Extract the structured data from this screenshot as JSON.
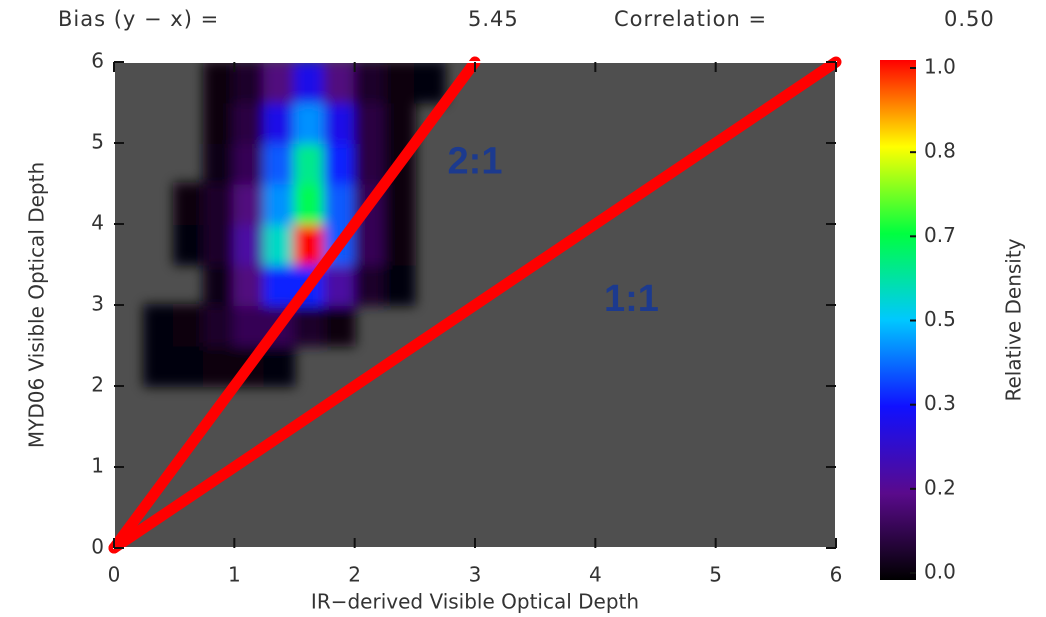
{
  "chart_data": {
    "type": "heatmap",
    "header": {
      "bias_label": "Bias (y − x) =",
      "bias_value": "5.45",
      "correlation_label": "Correlation =",
      "correlation_value": "0.50"
    },
    "xlabel": "IR−derived Visible Optical Depth",
    "ylabel": "MYD06 Visible Optical Depth",
    "colorbar_label": "Relative Density",
    "xlim": [
      0,
      6
    ],
    "ylim": [
      0,
      6
    ],
    "xticks": [
      0,
      1,
      2,
      3,
      4,
      5,
      6
    ],
    "yticks": [
      0,
      1,
      2,
      3,
      4,
      5,
      6
    ],
    "clim": [
      0,
      1
    ],
    "cticks": [
      {
        "value": 0,
        "label": "0.0"
      },
      {
        "value": 0.1667,
        "label": "0.2"
      },
      {
        "value": 0.3333,
        "label": "0.3"
      },
      0.5,
      {
        "value": 0.6667,
        "label": "0.7"
      },
      {
        "value": 0.8333,
        "label": "0.8"
      },
      {
        "value": 1,
        "label": "1.0"
      }
    ],
    "colorscale": [
      "#000000",
      "#5a0a8c",
      "#1010ff",
      "#00c8ff",
      "#00ff40",
      "#ffff00",
      "#ff0000"
    ],
    "background": "#4f4f4f",
    "xbins": [
      0.25,
      0.5,
      0.75,
      1.0,
      1.25,
      1.5,
      1.75,
      2.0,
      2.25,
      2.5,
      2.75
    ],
    "ybins": [
      2,
      2.5,
      3,
      3.5,
      4,
      4.5,
      5,
      5.5,
      6
    ],
    "z": [
      [
        0.01,
        0.01,
        0.02,
        0.02,
        0.01,
        null,
        null,
        null,
        null,
        null
      ],
      [
        0.01,
        0.02,
        0.05,
        0.1,
        0.1,
        0.05,
        0.02,
        null,
        null,
        null
      ],
      [
        null,
        null,
        0.03,
        0.15,
        0.35,
        0.35,
        0.2,
        0.05,
        0.01,
        null
      ],
      [
        null,
        0.01,
        0.05,
        0.2,
        0.55,
        1.0,
        0.4,
        0.1,
        0.02,
        null
      ],
      [
        null,
        0.02,
        0.05,
        0.15,
        0.45,
        0.65,
        0.4,
        0.1,
        0.02,
        null
      ],
      [
        null,
        null,
        0.03,
        0.1,
        0.4,
        0.6,
        0.35,
        0.08,
        0.02,
        null
      ],
      [
        null,
        null,
        0.02,
        0.08,
        0.3,
        0.45,
        0.3,
        0.08,
        0.02,
        null
      ],
      [
        null,
        null,
        0.02,
        0.05,
        0.15,
        0.3,
        0.15,
        0.05,
        0.02,
        0.01
      ]
    ],
    "lines": [
      {
        "label": "2:1",
        "color": "#ff0000",
        "x": [
          0,
          3
        ],
        "y": [
          0,
          6
        ]
      },
      {
        "label": "1:1",
        "color": "#ff0000",
        "x": [
          0,
          6
        ],
        "y": [
          0,
          6
        ]
      }
    ]
  }
}
